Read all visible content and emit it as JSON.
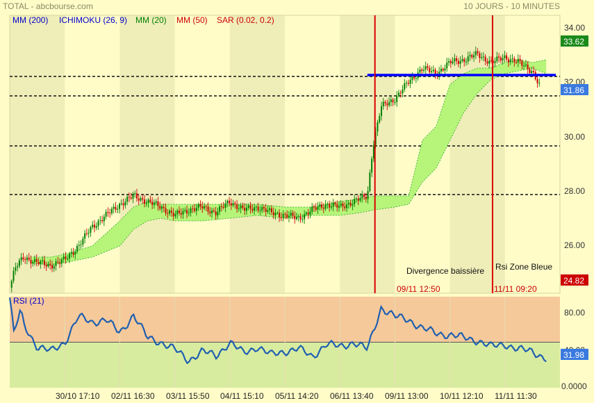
{
  "header": {
    "title": "TOTAL - abcbourse.com",
    "period": "10 JOURS - 10 MINUTES"
  },
  "legend": [
    {
      "label": "MM (200)",
      "color": "#0000CC"
    },
    {
      "label": "ICHIMOKU (26, 9)",
      "color": "#0000CC"
    },
    {
      "label": "MM (20)",
      "color": "#008000"
    },
    {
      "label": "MM (50)",
      "color": "#CC0000"
    },
    {
      "label": "SAR (0.02, 0.2)",
      "color": "#CC0000"
    }
  ],
  "colors": {
    "background": "#FFFCC8",
    "shade_band": "#EFEDB8",
    "candle_up": "#008000",
    "candle_down": "#CC0000",
    "cloud_fill": "#B7F57A",
    "cloud_edge": "#22AA22",
    "trend_line": "#0000FF",
    "event_line": "#DD0000",
    "rsi_line": "#1F5FB0",
    "rsi_overbought": "#F5C99A",
    "rsi_oversold": "#D8ECA0",
    "badge_high": "#1A8A1A",
    "badge_last": "#3A7AE0",
    "badge_low": "#CC0000"
  },
  "price_badges": {
    "high": "33.62",
    "last": "31.86",
    "low": "24.82"
  },
  "rsi_badges": {
    "value": "31.98"
  },
  "annotations": [
    {
      "label": "Divergence baissière",
      "date": "09/11 12:50",
      "x_index": 26.55
    },
    {
      "label": "Rsi Zone Bleue",
      "date": "11/11 09:20",
      "x_index": 35.1
    }
  ],
  "chart_data": [
    {
      "type": "candlestick",
      "title": "TOTAL - abcbourse.com",
      "x_labels": [
        "30/10 17:10",
        "02/11 16:30",
        "03/11 15:50",
        "04/11 15:10",
        "05/11 14:20",
        "06/11 13:40",
        "09/11 13:00",
        "10/11 12:10",
        "11/11 11:30"
      ],
      "y_tick_labels": [
        "34.00",
        "32.00",
        "30.00",
        "28.00",
        "26.00"
      ],
      "ylim": [
        24.5,
        34.5
      ],
      "close_path": [
        [
          0,
          24.7
        ],
        [
          0.4,
          25.4
        ],
        [
          1,
          25.8
        ],
        [
          2,
          25.6
        ],
        [
          3,
          25.5
        ],
        [
          4,
          25.7
        ],
        [
          5,
          26.2
        ],
        [
          6,
          26.9
        ],
        [
          7,
          27.3
        ],
        [
          8,
          27.7
        ],
        [
          9,
          28.0
        ],
        [
          10,
          27.8
        ],
        [
          11,
          27.6
        ],
        [
          12,
          27.3
        ],
        [
          13,
          27.5
        ],
        [
          14,
          27.6
        ],
        [
          15,
          27.4
        ],
        [
          16,
          27.8
        ],
        [
          17,
          27.5
        ],
        [
          18,
          27.6
        ],
        [
          19,
          27.4
        ],
        [
          20,
          27.3
        ],
        [
          21,
          27.2
        ],
        [
          22,
          27.5
        ],
        [
          23,
          27.7
        ],
        [
          24,
          27.6
        ],
        [
          25,
          27.8
        ],
        [
          26,
          28.0
        ],
        [
          26.4,
          29.8
        ],
        [
          27,
          31.2
        ],
        [
          28,
          31.5
        ],
        [
          29,
          32.1
        ],
        [
          30,
          32.6
        ],
        [
          31,
          32.4
        ],
        [
          32,
          32.8
        ],
        [
          33,
          32.9
        ],
        [
          34,
          33.1
        ],
        [
          35,
          32.8
        ],
        [
          36,
          33.0
        ],
        [
          37,
          32.8
        ],
        [
          38,
          32.5
        ],
        [
          38.6,
          31.86
        ]
      ],
      "cloud_upper": [
        [
          1.5,
          25.8
        ],
        [
          3,
          25.8
        ],
        [
          4,
          25.9
        ],
        [
          6,
          26.2
        ],
        [
          8,
          27.1
        ],
        [
          9,
          27.6
        ],
        [
          10,
          27.8
        ],
        [
          11,
          27.7
        ],
        [
          12,
          27.7
        ],
        [
          14,
          27.7
        ],
        [
          16,
          27.7
        ],
        [
          18,
          27.7
        ],
        [
          20,
          27.6
        ],
        [
          22,
          27.6
        ],
        [
          24,
          27.8
        ],
        [
          25.5,
          27.9
        ],
        [
          26.5,
          28.0
        ],
        [
          28,
          28.0
        ],
        [
          29,
          28.0
        ],
        [
          30,
          30.0
        ],
        [
          31,
          30.5
        ],
        [
          32,
          32.0
        ],
        [
          33,
          32.4
        ],
        [
          34,
          32.6
        ],
        [
          35,
          32.6
        ],
        [
          36,
          32.8
        ],
        [
          37,
          32.9
        ],
        [
          38,
          32.8
        ],
        [
          39,
          32.9
        ]
      ],
      "cloud_lower": [
        [
          1.5,
          25.6
        ],
        [
          3,
          25.5
        ],
        [
          4,
          25.6
        ],
        [
          6,
          25.8
        ],
        [
          8,
          26.2
        ],
        [
          9,
          26.8
        ],
        [
          10,
          27.1
        ],
        [
          11,
          27.2
        ],
        [
          12,
          27.1
        ],
        [
          14,
          27.1
        ],
        [
          16,
          27.2
        ],
        [
          18,
          27.3
        ],
        [
          20,
          27.2
        ],
        [
          22,
          27.3
        ],
        [
          24,
          27.3
        ],
        [
          25.5,
          27.4
        ],
        [
          26.5,
          27.5
        ],
        [
          28,
          27.6
        ],
        [
          29,
          27.7
        ],
        [
          30,
          28.5
        ],
        [
          31,
          29.0
        ],
        [
          32,
          30.0
        ],
        [
          33,
          31.0
        ],
        [
          34,
          31.7
        ],
        [
          35,
          32.2
        ],
        [
          36,
          32.4
        ],
        [
          37,
          32.5
        ],
        [
          38,
          32.6
        ],
        [
          39,
          32.4
        ]
      ],
      "horizontal_levels": [
        32.3,
        31.6,
        29.8,
        28.05
      ],
      "trend_line": {
        "from_index": 26.0,
        "to_index": 39.7,
        "value": 32.35
      }
    },
    {
      "type": "line",
      "title": "RSI (21)",
      "series": [
        {
          "name": "RSI (21)",
          "values_path": [
            [
              0,
              100
            ],
            [
              0.3,
              60
            ],
            [
              0.8,
              85
            ],
            [
              1,
              70
            ],
            [
              2,
              45
            ],
            [
              3,
              40
            ],
            [
              4,
              50
            ],
            [
              5,
              78
            ],
            [
              6,
              72
            ],
            [
              7,
              75
            ],
            [
              8,
              60
            ],
            [
              9,
              80
            ],
            [
              10,
              55
            ],
            [
              11,
              50
            ],
            [
              12,
              42
            ],
            [
              13,
              30
            ],
            [
              14,
              40
            ],
            [
              15,
              35
            ],
            [
              16,
              50
            ],
            [
              17,
              38
            ],
            [
              18,
              45
            ],
            [
              19,
              36
            ],
            [
              20,
              40
            ],
            [
              21,
              43
            ],
            [
              22,
              34
            ],
            [
              23,
              48
            ],
            [
              24,
              45
            ],
            [
              25,
              50
            ],
            [
              26,
              42
            ],
            [
              27,
              88
            ],
            [
              28,
              78
            ],
            [
              29,
              75
            ],
            [
              30,
              65
            ],
            [
              31,
              60
            ],
            [
              32,
              58
            ],
            [
              33,
              55
            ],
            [
              34,
              52
            ],
            [
              35,
              45
            ],
            [
              36,
              48
            ],
            [
              37,
              42
            ],
            [
              38,
              40
            ],
            [
              39,
              31.98
            ]
          ]
        }
      ],
      "y_tick_labels": [
        "80.00",
        "40.00",
        "0.0000"
      ],
      "ylim": [
        0,
        100
      ],
      "zones": {
        "overbought": [
          50,
          100
        ],
        "oversold": [
          0,
          50
        ]
      },
      "midline": 50
    }
  ]
}
